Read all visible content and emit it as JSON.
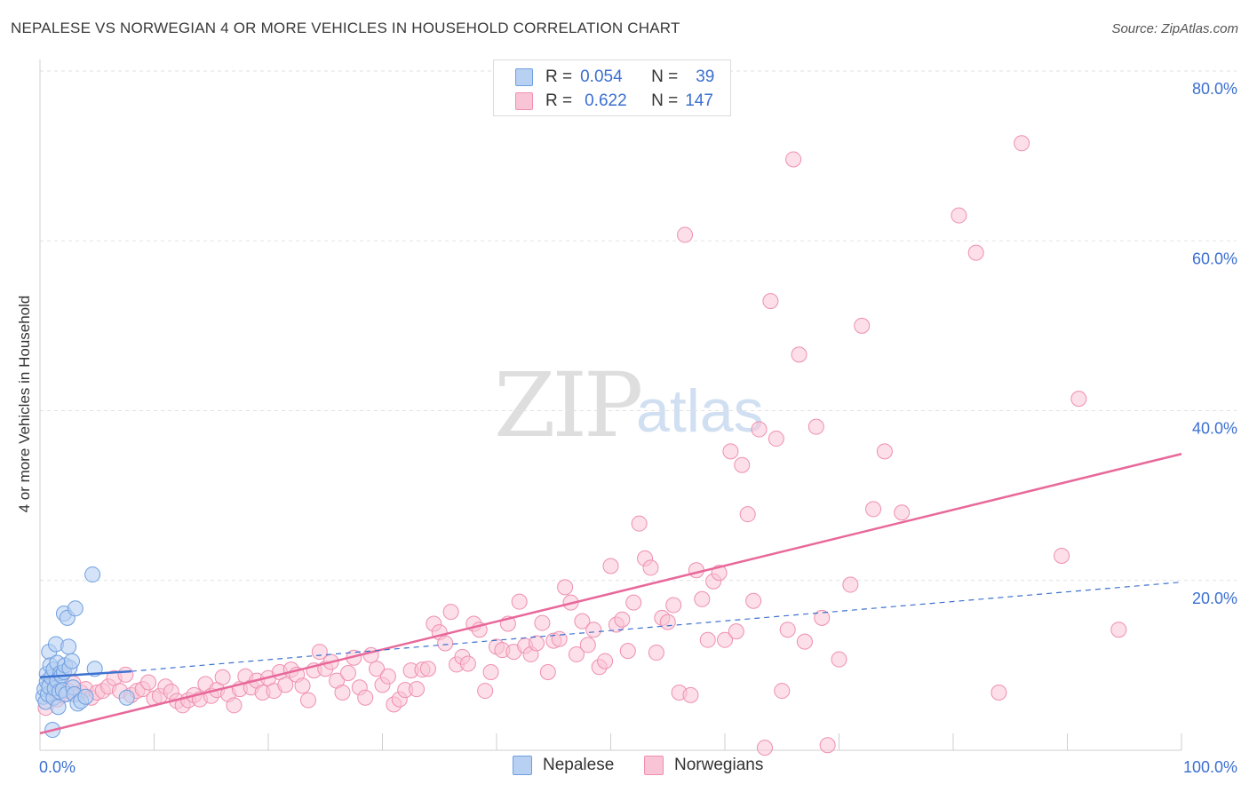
{
  "title": "NEPALESE VS NORWEGIAN 4 OR MORE VEHICLES IN HOUSEHOLD CORRELATION CHART",
  "source": "Source: ZipAtlas.com",
  "watermark": {
    "zip": "ZIP",
    "atlas": "atlas"
  },
  "legend": {
    "r_label": "R =",
    "n_label": "N =",
    "nepalese": {
      "r": "0.054",
      "n": "39"
    },
    "norwegians": {
      "r": "0.622",
      "n": "147"
    }
  },
  "colors": {
    "blue_fill": "#b8d0f2",
    "blue_stroke": "#6f9fe0",
    "blue_line": "#3d72d0",
    "pink_fill": "#f9c4d6",
    "pink_stroke": "#ef8fb0",
    "pink_line": "#e8689a",
    "axis_text": "#3b6fd0"
  },
  "chart_data": {
    "type": "scatter",
    "title": "NEPALESE VS NORWEGIAN 4 OR MORE VEHICLES IN HOUSEHOLD CORRELATION CHART",
    "xlabel": "",
    "ylabel": "4 or more Vehicles in Household",
    "xlim": [
      0,
      100
    ],
    "ylim": [
      0,
      80
    ],
    "x_tick_labels": [
      "0.0%",
      "100.0%"
    ],
    "y_ticks": [
      20,
      40,
      60,
      80
    ],
    "y_tick_labels": [
      "20.0%",
      "40.0%",
      "60.0%",
      "80.0%"
    ],
    "legend_entries": [
      "Nepalese",
      "Norwegians"
    ],
    "series": [
      {
        "name": "Nepalese",
        "r": 0.054,
        "n": 39,
        "trend_solid": [
          [
            0,
            8.6
          ],
          [
            8,
            9.3
          ]
        ],
        "trend_dashed": [
          [
            8,
            9.3
          ],
          [
            100,
            19.8
          ]
        ],
        "points": [
          [
            0.3,
            6.3
          ],
          [
            0.4,
            7.2
          ],
          [
            0.5,
            5.7
          ],
          [
            0.6,
            8.1
          ],
          [
            0.6,
            9.0
          ],
          [
            0.7,
            6.6
          ],
          [
            0.8,
            11.6
          ],
          [
            0.8,
            7.5
          ],
          [
            0.9,
            10.0
          ],
          [
            1.0,
            8.6
          ],
          [
            1.1,
            2.4
          ],
          [
            1.2,
            9.5
          ],
          [
            1.2,
            6.2
          ],
          [
            1.3,
            7.3
          ],
          [
            1.4,
            12.5
          ],
          [
            1.5,
            10.3
          ],
          [
            1.5,
            8.2
          ],
          [
            1.6,
            5.1
          ],
          [
            1.7,
            6.9
          ],
          [
            1.8,
            9.1
          ],
          [
            1.9,
            8.8
          ],
          [
            2.0,
            7.1
          ],
          [
            2.1,
            9.2
          ],
          [
            2.1,
            16.1
          ],
          [
            2.2,
            10.0
          ],
          [
            2.3,
            6.6
          ],
          [
            2.4,
            15.6
          ],
          [
            2.5,
            12.2
          ],
          [
            2.6,
            9.7
          ],
          [
            2.8,
            10.5
          ],
          [
            2.9,
            7.4
          ],
          [
            3.0,
            6.6
          ],
          [
            3.1,
            16.7
          ],
          [
            3.3,
            5.5
          ],
          [
            3.6,
            5.8
          ],
          [
            4.0,
            6.3
          ],
          [
            4.6,
            20.7
          ],
          [
            4.8,
            9.6
          ],
          [
            7.6,
            6.2
          ]
        ]
      },
      {
        "name": "Norwegians",
        "r": 0.622,
        "n": 147,
        "trend_solid": [
          [
            0,
            2.0
          ],
          [
            100,
            34.9
          ]
        ],
        "points": [
          [
            0.5,
            5.0
          ],
          [
            0.9,
            7.6
          ],
          [
            1.2,
            6.9
          ],
          [
            1.5,
            6.0
          ],
          [
            2.0,
            6.5
          ],
          [
            2.5,
            7.0
          ],
          [
            2.9,
            7.9
          ],
          [
            3.2,
            6.6
          ],
          [
            3.6,
            6.8
          ],
          [
            4.0,
            7.2
          ],
          [
            4.5,
            6.2
          ],
          [
            5.0,
            6.8
          ],
          [
            5.5,
            7.0
          ],
          [
            6.0,
            7.5
          ],
          [
            6.5,
            8.5
          ],
          [
            7.0,
            7.0
          ],
          [
            7.5,
            8.9
          ],
          [
            8.0,
            6.5
          ],
          [
            8.5,
            7.0
          ],
          [
            9.0,
            7.2
          ],
          [
            9.5,
            8.0
          ],
          [
            10.0,
            6.1
          ],
          [
            10.5,
            6.4
          ],
          [
            11.0,
            7.5
          ],
          [
            11.5,
            6.9
          ],
          [
            12.0,
            5.8
          ],
          [
            12.5,
            5.3
          ],
          [
            13.0,
            5.9
          ],
          [
            13.5,
            6.5
          ],
          [
            14.0,
            6.0
          ],
          [
            14.5,
            7.8
          ],
          [
            15.0,
            6.4
          ],
          [
            15.5,
            7.1
          ],
          [
            16.0,
            8.6
          ],
          [
            16.5,
            6.6
          ],
          [
            17.0,
            5.3
          ],
          [
            17.5,
            7.2
          ],
          [
            18.0,
            8.7
          ],
          [
            18.5,
            7.4
          ],
          [
            19.0,
            8.2
          ],
          [
            19.5,
            6.8
          ],
          [
            20.0,
            8.5
          ],
          [
            20.5,
            7.0
          ],
          [
            21.0,
            9.2
          ],
          [
            21.5,
            7.7
          ],
          [
            22.0,
            9.5
          ],
          [
            22.5,
            8.9
          ],
          [
            23.0,
            7.6
          ],
          [
            23.5,
            5.9
          ],
          [
            24.0,
            9.4
          ],
          [
            24.5,
            11.6
          ],
          [
            25.0,
            9.6
          ],
          [
            25.5,
            10.4
          ],
          [
            26.0,
            8.2
          ],
          [
            26.5,
            6.8
          ],
          [
            27.0,
            9.1
          ],
          [
            27.5,
            10.9
          ],
          [
            28.0,
            7.4
          ],
          [
            28.5,
            6.2
          ],
          [
            29.0,
            11.2
          ],
          [
            29.5,
            9.6
          ],
          [
            30.0,
            7.7
          ],
          [
            30.5,
            8.7
          ],
          [
            31.0,
            5.4
          ],
          [
            31.5,
            6.0
          ],
          [
            32.0,
            7.1
          ],
          [
            32.5,
            9.4
          ],
          [
            33.0,
            7.2
          ],
          [
            33.5,
            9.5
          ],
          [
            34.0,
            9.6
          ],
          [
            34.5,
            14.9
          ],
          [
            35.0,
            13.9
          ],
          [
            35.5,
            12.6
          ],
          [
            36.0,
            16.3
          ],
          [
            36.5,
            10.1
          ],
          [
            37.0,
            11.0
          ],
          [
            37.5,
            10.2
          ],
          [
            38.0,
            14.9
          ],
          [
            38.5,
            14.2
          ],
          [
            39.0,
            7.0
          ],
          [
            39.5,
            9.2
          ],
          [
            40.0,
            12.2
          ],
          [
            40.5,
            11.8
          ],
          [
            41.0,
            14.9
          ],
          [
            41.5,
            11.6
          ],
          [
            42.0,
            17.5
          ],
          [
            42.5,
            12.3
          ],
          [
            43.0,
            11.3
          ],
          [
            43.5,
            12.6
          ],
          [
            44.0,
            15.0
          ],
          [
            44.5,
            9.2
          ],
          [
            45.0,
            12.9
          ],
          [
            45.5,
            13.1
          ],
          [
            46.0,
            19.2
          ],
          [
            46.5,
            17.4
          ],
          [
            47.0,
            11.3
          ],
          [
            47.5,
            15.2
          ],
          [
            48.0,
            12.4
          ],
          [
            48.5,
            14.2
          ],
          [
            49.0,
            9.8
          ],
          [
            49.5,
            10.5
          ],
          [
            50.0,
            21.7
          ],
          [
            50.5,
            14.8
          ],
          [
            51.0,
            15.4
          ],
          [
            51.5,
            11.7
          ],
          [
            52.0,
            17.4
          ],
          [
            52.5,
            26.7
          ],
          [
            53.0,
            22.6
          ],
          [
            53.5,
            21.5
          ],
          [
            54.0,
            11.5
          ],
          [
            54.5,
            15.6
          ],
          [
            55.0,
            15.1
          ],
          [
            55.5,
            17.1
          ],
          [
            56.0,
            6.8
          ],
          [
            56.5,
            60.7
          ],
          [
            57.0,
            6.5
          ],
          [
            57.5,
            21.2
          ],
          [
            58.0,
            17.8
          ],
          [
            58.5,
            13.0
          ],
          [
            59.0,
            19.9
          ],
          [
            59.5,
            20.9
          ],
          [
            60.0,
            13.0
          ],
          [
            60.5,
            35.2
          ],
          [
            61.0,
            14.0
          ],
          [
            61.5,
            33.6
          ],
          [
            62.0,
            27.8
          ],
          [
            62.5,
            17.6
          ],
          [
            63.0,
            37.8
          ],
          [
            63.5,
            0.3
          ],
          [
            64.0,
            52.9
          ],
          [
            64.5,
            36.7
          ],
          [
            65.0,
            7.0
          ],
          [
            65.5,
            14.2
          ],
          [
            66.0,
            69.6
          ],
          [
            66.5,
            46.6
          ],
          [
            67.0,
            12.8
          ],
          [
            68.0,
            38.1
          ],
          [
            68.5,
            15.6
          ],
          [
            69.0,
            0.6
          ],
          [
            70.0,
            10.7
          ],
          [
            71.0,
            19.5
          ],
          [
            72.0,
            50.0
          ],
          [
            73.0,
            28.4
          ],
          [
            74.0,
            35.2
          ],
          [
            75.5,
            28.0
          ],
          [
            80.5,
            63.0
          ],
          [
            82.0,
            58.6
          ],
          [
            84.0,
            6.8
          ],
          [
            86.0,
            71.5
          ],
          [
            89.5,
            22.9
          ],
          [
            91.0,
            41.4
          ],
          [
            94.5,
            14.2
          ]
        ]
      }
    ]
  }
}
